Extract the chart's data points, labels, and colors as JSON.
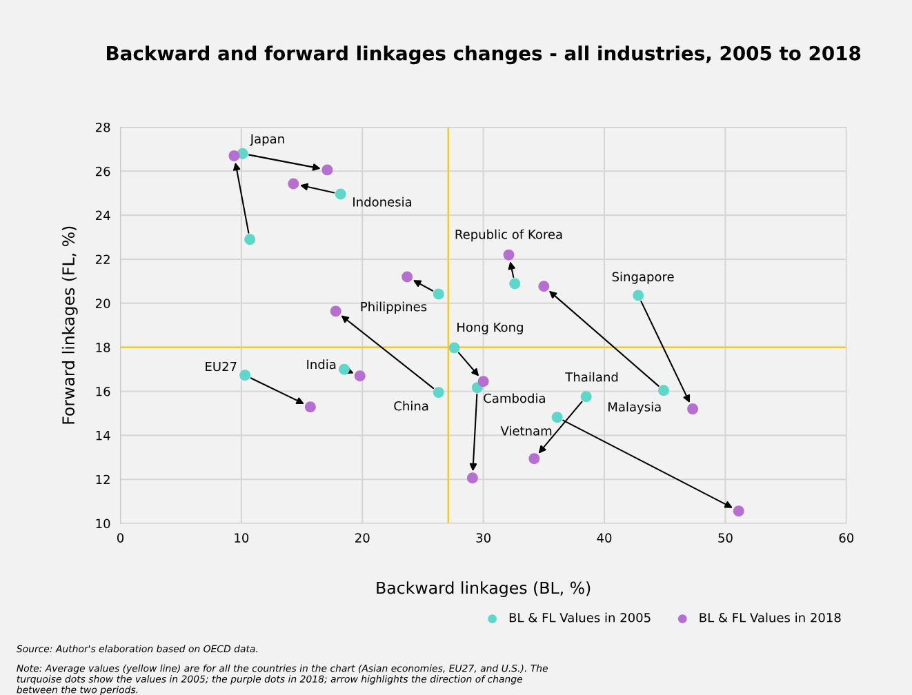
{
  "chart_data": {
    "type": "scatter",
    "title": "Backward and forward linkages changes - all industries, 2005 to 2018",
    "xlabel": "Backward linkages (BL, %)",
    "ylabel": "Forward linkages (FL, %)",
    "xlim": [
      0,
      60
    ],
    "ylim": [
      10,
      28
    ],
    "xticks": [
      0,
      10,
      20,
      30,
      40,
      50,
      60
    ],
    "yticks": [
      10,
      12,
      14,
      16,
      18,
      20,
      22,
      24,
      26,
      28
    ],
    "grid": true,
    "legend": "bottom right",
    "marker": "circle",
    "series": [
      {
        "name": "BL & FL Values in 2005",
        "color": "#5ed6c9",
        "x": [
          10.1,
          18.2,
          32.6,
          26.3,
          42.8,
          44.9,
          26.3,
          27.6,
          29.5,
          18.5,
          10.3,
          38.5,
          36.1,
          10.7
        ],
        "values": [
          26.8,
          24.96,
          20.89,
          20.42,
          20.36,
          16.04,
          15.95,
          17.98,
          16.17,
          17.0,
          16.73,
          15.76,
          14.82,
          22.9
        ]
      },
      {
        "name": "BL & FL Values in 2018",
        "color": "#b66fd0",
        "x": [
          17.1,
          14.3,
          32.1,
          23.7,
          47.3,
          35.0,
          17.8,
          30.0,
          29.1,
          19.8,
          15.7,
          34.2,
          51.1,
          9.4
        ],
        "values": [
          26.06,
          25.43,
          22.2,
          21.2,
          15.2,
          20.77,
          19.64,
          16.45,
          12.06,
          16.7,
          15.29,
          12.94,
          10.56,
          26.7
        ]
      }
    ],
    "ref_lines": [
      {
        "axis": "x",
        "value": 27.1,
        "label": null,
        "color": "#f0c93c"
      },
      {
        "axis": "y",
        "value": 18.0,
        "label": null,
        "color": "#f0c93c"
      }
    ],
    "annotations": [
      {
        "text": "Japan",
        "x": 10.1,
        "y": 26.8
      },
      {
        "text": "Indonesia",
        "x": 18.2,
        "y": 24.96
      },
      {
        "text": "Republic of Korea",
        "x": 32.1,
        "y": 22.2
      },
      {
        "text": "Philippines",
        "x": 26.3,
        "y": 20.42
      },
      {
        "text": "Singapore",
        "x": 42.8,
        "y": 20.36
      },
      {
        "text": "Malaysia",
        "x": 44.9,
        "y": 16.04
      },
      {
        "text": "China",
        "x": 26.3,
        "y": 15.95
      },
      {
        "text": "Hong Kong",
        "x": 27.6,
        "y": 17.98
      },
      {
        "text": "Cambodia",
        "x": 29.5,
        "y": 16.17
      },
      {
        "text": "India",
        "x": 18.5,
        "y": 17.0
      },
      {
        "text": "EU27",
        "x": 10.3,
        "y": 16.73
      },
      {
        "text": "Thailand",
        "x": 38.5,
        "y": 15.76
      },
      {
        "text": "Vietnam",
        "x": 36.1,
        "y": 14.82
      },
      "Source: Author's elaboration based on OECD data.",
      "Note: Average values (yellow line) are for all the countries in the chart (Asian economies, EU27, and U.S.). The turquoise dots show the values in 2005; the purple dots in 2018; arrow highlights the direction of change between the two periods."
    ]
  }
}
